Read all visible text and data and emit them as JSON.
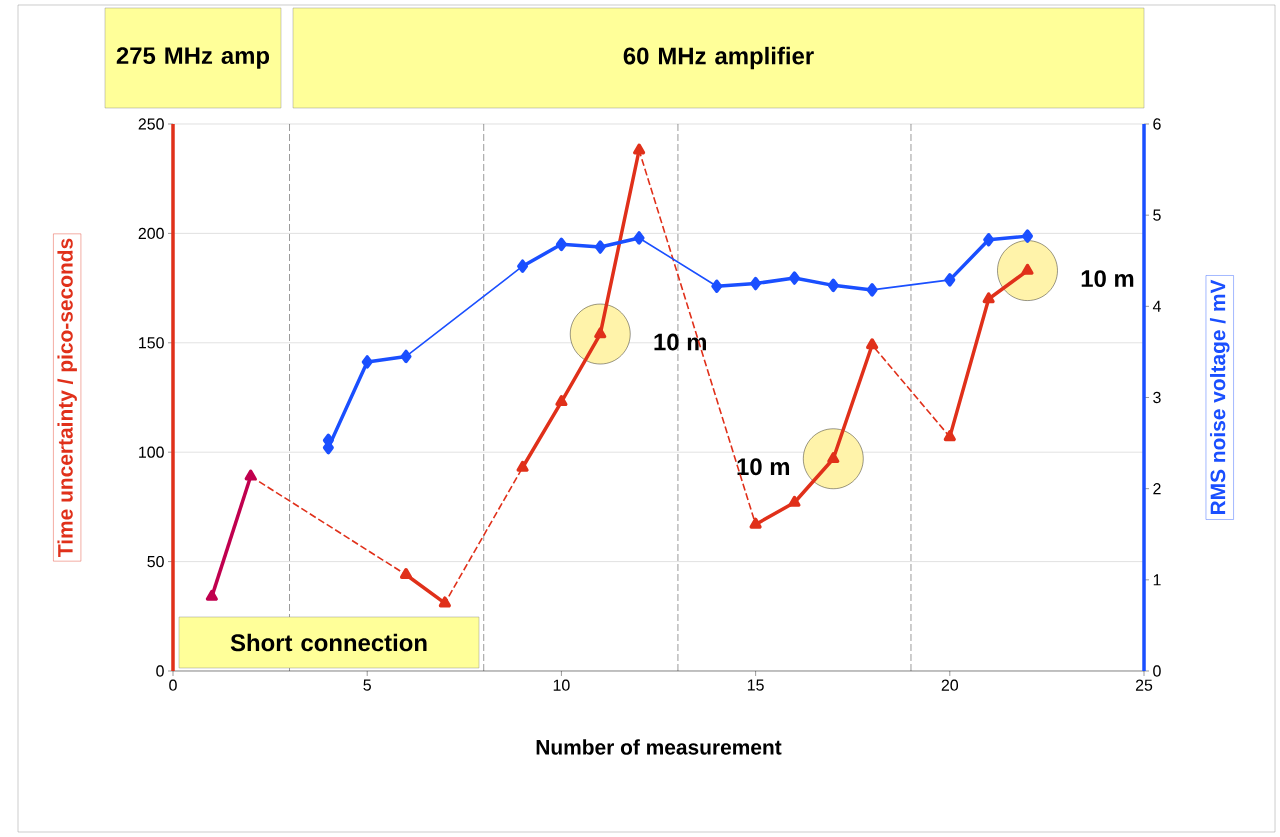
{
  "chart_data": {
    "type": "line",
    "xlabel": "Number of measurement",
    "ylabel": "Time uncertainty / pico-seconds",
    "y2label": "RMS noise voltage / mV",
    "xlim": [
      0,
      25
    ],
    "xticks": [
      0,
      5,
      10,
      15,
      20,
      25
    ],
    "ylim": [
      0,
      250
    ],
    "yticks": [
      0,
      50,
      100,
      150,
      200,
      250
    ],
    "y2lim": [
      0,
      6
    ],
    "y2ticks": [
      0,
      1,
      2,
      3,
      4,
      5,
      6
    ],
    "grid": "y",
    "series": [
      {
        "color": "#e0301a",
        "marker": "triangle",
        "line_style": "dashed",
        "x": [
          2,
          6,
          7,
          9,
          10,
          11,
          12,
          15,
          16,
          17,
          18,
          20
        ],
        "values": [
          89,
          44,
          31,
          93,
          123,
          154,
          238,
          67,
          77,
          97,
          149,
          107
        ]
      },
      {
        "color": "#c0004e",
        "marker": "triangle",
        "x": [
          1,
          2
        ],
        "values": [
          34,
          89
        ]
      },
      {
        "color": "#e0301a",
        "marker": "triangle",
        "x": [
          6,
          7,
          8,
          9,
          10,
          11,
          12,
          14,
          15,
          16,
          17,
          18,
          19,
          20,
          21,
          22
        ],
        "values": [
          44,
          31,
          null,
          93,
          123,
          154,
          238,
          null,
          67,
          77,
          97,
          149,
          null,
          107,
          170,
          183
        ]
      },
      {
        "color": "#1a4fff",
        "marker": "diamond",
        "line_style": "solid",
        "axis": "y2",
        "x": [
          6,
          9,
          10,
          11,
          12,
          14,
          15,
          16,
          17,
          18,
          20
        ],
        "values": [
          3.45,
          4.44,
          4.68,
          4.65,
          4.75,
          4.22,
          4.25,
          4.31,
          4.23,
          4.18,
          4.29
        ]
      },
      {
        "color": "#1a4fff",
        "marker": "diamond",
        "axis": "y2",
        "x": [
          4,
          4,
          5,
          6,
          7,
          9,
          10,
          11,
          12,
          13,
          14,
          15,
          16,
          17,
          18,
          19,
          20,
          21,
          22
        ],
        "values": [
          2.53,
          2.45,
          3.39,
          3.45,
          null,
          4.44,
          4.68,
          4.65,
          4.75,
          null,
          4.22,
          4.25,
          4.31,
          4.23,
          4.18,
          null,
          4.29,
          4.73,
          4.77
        ]
      }
    ],
    "ref_lines": [
      {
        "axis": "x",
        "value": 3,
        "color": "#000000",
        "line_style": "dashed"
      },
      {
        "axis": "x",
        "value": 8,
        "color": "#000000",
        "line_style": "dashed"
      },
      {
        "axis": "x",
        "value": 13,
        "color": "#000000",
        "line_style": "dashed"
      },
      {
        "axis": "x",
        "value": 19,
        "color": "#000000",
        "line_style": "dashed"
      }
    ],
    "annotations": [
      "275 MHz amp",
      "60 MHz  amplifier",
      "Short connection",
      {
        "text": "10 m",
        "x": 11,
        "y": 154
      },
      {
        "text": "10 m",
        "x": 17,
        "y": 97
      },
      {
        "text": "10 m",
        "x": 22,
        "y": 183
      }
    ]
  }
}
